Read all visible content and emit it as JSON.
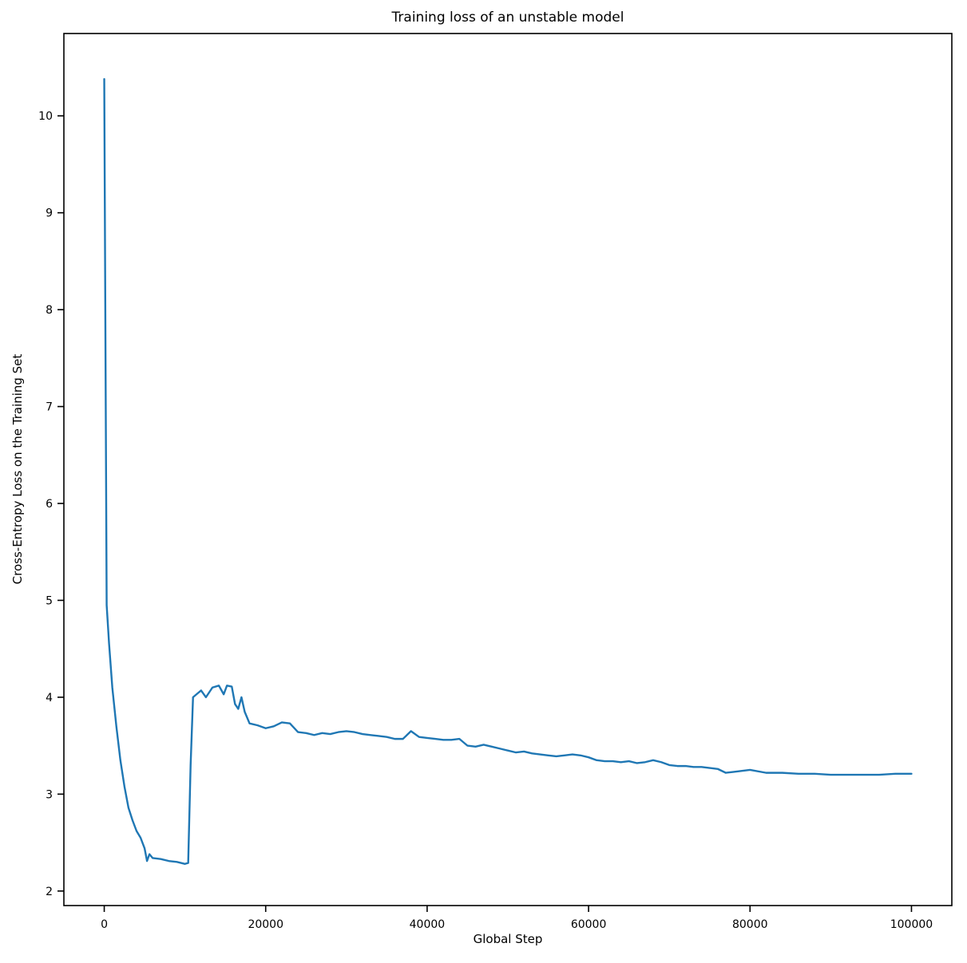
{
  "chart_data": {
    "type": "line",
    "title": "Training loss of an unstable model",
    "xlabel": "Global Step",
    "ylabel": "Cross-Entropy Loss on the Training Set",
    "xlim": [
      -5000,
      105000
    ],
    "ylim": [
      1.85,
      10.85
    ],
    "xticks": [
      0,
      20000,
      40000,
      60000,
      80000,
      100000
    ],
    "yticks": [
      2,
      3,
      4,
      5,
      6,
      7,
      8,
      9,
      10
    ],
    "grid": false,
    "legend": "none",
    "line_color": "#1f77b4",
    "series": [
      {
        "name": "training_loss",
        "x": [
          0,
          300,
          600,
          1000,
          1500,
          2000,
          2500,
          3000,
          3500,
          4000,
          4500,
          5000,
          5300,
          5600,
          6000,
          7000,
          8000,
          9000,
          10000,
          10400,
          10700,
          11000,
          12000,
          12600,
          13400,
          14200,
          14800,
          15200,
          15800,
          16200,
          16600,
          17000,
          17400,
          18000,
          19000,
          20000,
          21000,
          22000,
          23000,
          24000,
          25000,
          26000,
          27000,
          28000,
          29000,
          30000,
          31000,
          32000,
          33000,
          34000,
          35000,
          36000,
          37000,
          38000,
          39000,
          40000,
          41000,
          42000,
          43000,
          44000,
          45000,
          46000,
          47000,
          48000,
          49000,
          50000,
          51000,
          52000,
          53000,
          54000,
          55000,
          56000,
          57000,
          58000,
          59000,
          60000,
          61000,
          62000,
          63000,
          64000,
          65000,
          66000,
          67000,
          68000,
          69000,
          70000,
          71000,
          72000,
          73000,
          74000,
          75000,
          76000,
          77000,
          78000,
          79000,
          80000,
          82000,
          84000,
          86000,
          88000,
          90000,
          92000,
          94000,
          96000,
          98000,
          100000
        ],
        "y": [
          10.38,
          4.95,
          4.55,
          4.1,
          3.7,
          3.35,
          3.08,
          2.86,
          2.73,
          2.62,
          2.55,
          2.44,
          2.31,
          2.38,
          2.34,
          2.33,
          2.31,
          2.3,
          2.28,
          2.29,
          3.3,
          4.0,
          4.07,
          4.0,
          4.1,
          4.12,
          4.03,
          4.12,
          4.11,
          3.93,
          3.88,
          4.0,
          3.85,
          3.73,
          3.71,
          3.68,
          3.7,
          3.74,
          3.73,
          3.64,
          3.63,
          3.61,
          3.63,
          3.62,
          3.64,
          3.65,
          3.64,
          3.62,
          3.61,
          3.6,
          3.59,
          3.57,
          3.57,
          3.65,
          3.59,
          3.58,
          3.57,
          3.56,
          3.56,
          3.57,
          3.5,
          3.49,
          3.51,
          3.49,
          3.47,
          3.45,
          3.43,
          3.44,
          3.42,
          3.41,
          3.4,
          3.39,
          3.4,
          3.41,
          3.4,
          3.38,
          3.35,
          3.34,
          3.34,
          3.33,
          3.34,
          3.32,
          3.33,
          3.35,
          3.33,
          3.3,
          3.29,
          3.29,
          3.28,
          3.28,
          3.27,
          3.26,
          3.22,
          3.23,
          3.24,
          3.25,
          3.22,
          3.22,
          3.21,
          3.21,
          3.2,
          3.2,
          3.2,
          3.2,
          3.21,
          3.21
        ]
      }
    ]
  }
}
